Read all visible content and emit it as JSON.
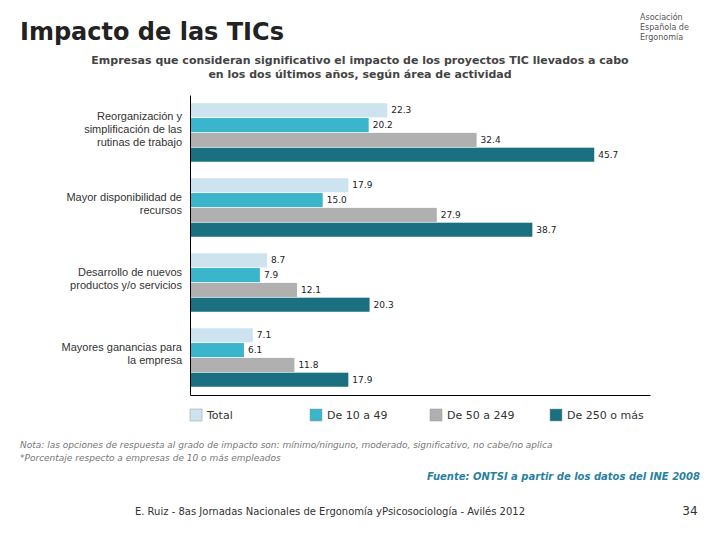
{
  "chart_data": {
    "type": "bar",
    "orientation": "horizontal",
    "title": "Impacto de las TICs",
    "subtitle": "Empresas que consideran significativo el impacto de los proyectos TIC llevados a cabo\nen los dos últimos años, según área de actividad",
    "categories": [
      "Reorganización y\nsimplificación de las\nrutinas de trabajo",
      "Mayor disponibilidad de\nrecursos",
      "Desarrollo de nuevos\nproductos y/o servicios",
      "Mayores ganancias para\nla empresa"
    ],
    "series": [
      {
        "name": "Total",
        "color": "#cde3ef",
        "values": [
          22.3,
          17.9,
          8.7,
          7.1
        ],
        "value_labels": [
          "22.3",
          "17.9",
          "8.7",
          "7.1"
        ]
      },
      {
        "name": "De 10 a 49",
        "color": "#3ab5cc",
        "values": [
          20.2,
          15.0,
          7.9,
          6.1
        ],
        "value_labels": [
          "20.2",
          "15.0",
          "7.9",
          "6.1"
        ]
      },
      {
        "name": "De 50 a 249",
        "color": "#b0b0b0",
        "values": [
          32.4,
          27.9,
          12.1,
          11.8
        ],
        "value_labels": [
          "32.4",
          "27.9",
          "12.1",
          "11.8"
        ]
      },
      {
        "name": "De 250 o más",
        "color": "#1a7080",
        "values": [
          45.7,
          38.7,
          20.3,
          17.9
        ],
        "value_labels": [
          "45.7",
          "38.7",
          "20.3",
          "17.9"
        ]
      }
    ],
    "xlim": [
      0,
      52
    ],
    "tick_labels": "y",
    "grid": false,
    "legend": "bottom",
    "data_labels": true,
    "annotations": [
      "Nota: las opciones de respuesta al grado de impacto son: mínimo/ninguno, moderado, significativo, no cabe/no aplica",
      "*Porcentaje respecto a empresas de 10 o más empleados",
      "Fuente: ONTSI a partir de los datos del INE 2008",
      "E. Ruiz - 8as Jornadas Nacionales de Ergonomía yPsicosociología -  Avilés 2012",
      "34",
      "Asociación\nEspañola de\nErgonomía"
    ]
  }
}
